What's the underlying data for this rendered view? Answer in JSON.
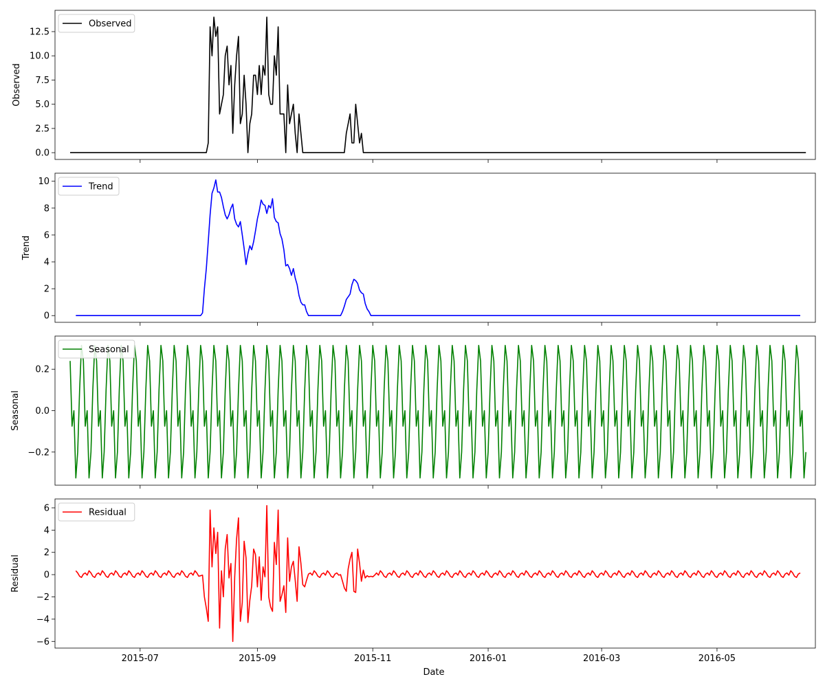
{
  "chart_data": {
    "type": "line",
    "xlabel": "Date",
    "x_range": [
      "2015-05-17",
      "2016-06-22"
    ],
    "x_ticks": [
      "2015-07",
      "2015-09",
      "2015-11",
      "2016-01",
      "2016-03",
      "2016-05"
    ],
    "x_tick_dates": [
      "2015-07-01",
      "2015-09-01",
      "2015-11-01",
      "2016-01-01",
      "2016-03-01",
      "2016-05-01"
    ],
    "legend_position": "upper-left",
    "grid": false,
    "panels": [
      {
        "id": "observed",
        "ylabel": "Observed",
        "legend": "Observed",
        "color": "#000000",
        "ylim": [
          -0.7,
          14.7
        ],
        "y_ticks": [
          0.0,
          2.5,
          5.0,
          7.5,
          10.0,
          12.5
        ],
        "y_tick_labels": [
          "0.0",
          "2.5",
          "5.0",
          "7.5",
          "10.0",
          "12.5"
        ],
        "points": [
          [
            "2015-05-25",
            0
          ],
          [
            "2015-08-05",
            0
          ],
          [
            "2015-08-06",
            1
          ],
          [
            "2015-08-07",
            13
          ],
          [
            "2015-08-08",
            10
          ],
          [
            "2015-08-09",
            14
          ],
          [
            "2015-08-10",
            12
          ],
          [
            "2015-08-11",
            13
          ],
          [
            "2015-08-12",
            4
          ],
          [
            "2015-08-14",
            6
          ],
          [
            "2015-08-15",
            10
          ],
          [
            "2015-08-16",
            11
          ],
          [
            "2015-08-17",
            7
          ],
          [
            "2015-08-18",
            9
          ],
          [
            "2015-08-19",
            2
          ],
          [
            "2015-08-20",
            7
          ],
          [
            "2015-08-21",
            10
          ],
          [
            "2015-08-22",
            12
          ],
          [
            "2015-08-23",
            3
          ],
          [
            "2015-08-24",
            4
          ],
          [
            "2015-08-25",
            8
          ],
          [
            "2015-08-26",
            5
          ],
          [
            "2015-08-27",
            0
          ],
          [
            "2015-08-28",
            3
          ],
          [
            "2015-08-29",
            4
          ],
          [
            "2015-08-30",
            8
          ],
          [
            "2015-08-31",
            8
          ],
          [
            "2015-09-01",
            6
          ],
          [
            "2015-09-02",
            9
          ],
          [
            "2015-09-03",
            6
          ],
          [
            "2015-09-04",
            9
          ],
          [
            "2015-09-05",
            8
          ],
          [
            "2015-09-06",
            14
          ],
          [
            "2015-09-07",
            6
          ],
          [
            "2015-09-08",
            5
          ],
          [
            "2015-09-09",
            5
          ],
          [
            "2015-09-10",
            10
          ],
          [
            "2015-09-11",
            8
          ],
          [
            "2015-09-12",
            13
          ],
          [
            "2015-09-13",
            4
          ],
          [
            "2015-09-15",
            4
          ],
          [
            "2015-09-16",
            0
          ],
          [
            "2015-09-17",
            7
          ],
          [
            "2015-09-18",
            3
          ],
          [
            "2015-09-19",
            4
          ],
          [
            "2015-09-20",
            5
          ],
          [
            "2015-09-21",
            2
          ],
          [
            "2015-09-22",
            0
          ],
          [
            "2015-09-23",
            4
          ],
          [
            "2015-09-24",
            2
          ],
          [
            "2015-09-25",
            0
          ],
          [
            "2015-10-17",
            0
          ],
          [
            "2015-10-18",
            2
          ],
          [
            "2015-10-20",
            4
          ],
          [
            "2015-10-21",
            1
          ],
          [
            "2015-10-22",
            1
          ],
          [
            "2015-10-23",
            5
          ],
          [
            "2015-10-24",
            3
          ],
          [
            "2015-10-25",
            1
          ],
          [
            "2015-10-26",
            2
          ],
          [
            "2015-10-27",
            0
          ],
          [
            "2016-06-17",
            0
          ]
        ]
      },
      {
        "id": "trend",
        "ylabel": "Trend",
        "legend": "Trend",
        "color": "#0000ff",
        "ylim": [
          -0.5,
          10.6
        ],
        "y_ticks": [
          0,
          2,
          4,
          6,
          8,
          10
        ],
        "y_tick_labels": [
          "0",
          "2",
          "4",
          "6",
          "8",
          "10"
        ],
        "points": [
          [
            "2015-05-28",
            0
          ],
          [
            "2015-08-02",
            0
          ],
          [
            "2015-08-03",
            0.2
          ],
          [
            "2015-08-04",
            2.0
          ],
          [
            "2015-08-05",
            3.5
          ],
          [
            "2015-08-06",
            5.5
          ],
          [
            "2015-08-07",
            7.5
          ],
          [
            "2015-08-08",
            9.1
          ],
          [
            "2015-08-09",
            9.5
          ],
          [
            "2015-08-10",
            10.1
          ],
          [
            "2015-08-11",
            9.2
          ],
          [
            "2015-08-12",
            9.2
          ],
          [
            "2015-08-13",
            8.8
          ],
          [
            "2015-08-14",
            8.1
          ],
          [
            "2015-08-15",
            7.5
          ],
          [
            "2015-08-16",
            7.2
          ],
          [
            "2015-08-17",
            7.5
          ],
          [
            "2015-08-18",
            8.0
          ],
          [
            "2015-08-19",
            8.3
          ],
          [
            "2015-08-20",
            7.2
          ],
          [
            "2015-08-21",
            6.8
          ],
          [
            "2015-08-22",
            6.6
          ],
          [
            "2015-08-23",
            7.0
          ],
          [
            "2015-08-24",
            6.0
          ],
          [
            "2015-08-25",
            5.0
          ],
          [
            "2015-08-26",
            3.8
          ],
          [
            "2015-08-27",
            4.6
          ],
          [
            "2015-08-28",
            5.2
          ],
          [
            "2015-08-29",
            4.9
          ],
          [
            "2015-08-30",
            5.5
          ],
          [
            "2015-08-31",
            6.3
          ],
          [
            "2015-09-01",
            7.2
          ],
          [
            "2015-09-02",
            7.8
          ],
          [
            "2015-09-03",
            8.6
          ],
          [
            "2015-09-04",
            8.3
          ],
          [
            "2015-09-05",
            8.2
          ],
          [
            "2015-09-06",
            7.6
          ],
          [
            "2015-09-07",
            8.2
          ],
          [
            "2015-09-08",
            8.0
          ],
          [
            "2015-09-09",
            8.7
          ],
          [
            "2015-09-10",
            7.3
          ],
          [
            "2015-09-11",
            7.0
          ],
          [
            "2015-09-12",
            6.9
          ],
          [
            "2015-09-13",
            6.1
          ],
          [
            "2015-09-14",
            5.7
          ],
          [
            "2015-09-15",
            4.9
          ],
          [
            "2015-09-16",
            3.7
          ],
          [
            "2015-09-17",
            3.8
          ],
          [
            "2015-09-18",
            3.5
          ],
          [
            "2015-09-19",
            3.0
          ],
          [
            "2015-09-20",
            3.5
          ],
          [
            "2015-09-21",
            2.8
          ],
          [
            "2015-09-22",
            2.3
          ],
          [
            "2015-09-23",
            1.5
          ],
          [
            "2015-09-24",
            1.0
          ],
          [
            "2015-09-25",
            0.8
          ],
          [
            "2015-09-26",
            0.8
          ],
          [
            "2015-09-27",
            0.3
          ],
          [
            "2015-09-28",
            0
          ],
          [
            "2015-10-15",
            0
          ],
          [
            "2015-10-16",
            0.3
          ],
          [
            "2015-10-17",
            0.7
          ],
          [
            "2015-10-18",
            1.2
          ],
          [
            "2015-10-19",
            1.4
          ],
          [
            "2015-10-20",
            1.6
          ],
          [
            "2015-10-21",
            2.3
          ],
          [
            "2015-10-22",
            2.7
          ],
          [
            "2015-10-23",
            2.6
          ],
          [
            "2015-10-24",
            2.4
          ],
          [
            "2015-10-25",
            1.9
          ],
          [
            "2015-10-26",
            1.7
          ],
          [
            "2015-10-27",
            1.6
          ],
          [
            "2015-10-28",
            0.9
          ],
          [
            "2015-10-29",
            0.5
          ],
          [
            "2015-10-30",
            0.3
          ],
          [
            "2015-10-31",
            0
          ],
          [
            "2016-06-14",
            0
          ]
        ]
      },
      {
        "id": "seasonal",
        "ylabel": "Seasonal",
        "legend": "Seasonal",
        "color": "#008000",
        "ylim": [
          -0.36,
          0.36
        ],
        "y_ticks": [
          -0.2,
          0.0,
          0.2
        ],
        "y_tick_labels": [
          "−0.2",
          "0.0",
          "0.2"
        ],
        "start_date": "2015-05-25",
        "end_date": "2016-06-17",
        "period_values": [
          0.24,
          -0.075,
          0.0,
          -0.325,
          -0.2,
          0.1,
          0.315
        ]
      },
      {
        "id": "residual",
        "ylabel": "Residual",
        "legend": "Residual",
        "color": "#ff0000",
        "ylim": [
          -6.6,
          6.8
        ],
        "y_ticks": [
          -6,
          -4,
          -2,
          0,
          2,
          4,
          6
        ],
        "y_tick_labels": [
          "−6",
          "−4",
          "−2",
          "0",
          "2",
          "4",
          "6"
        ],
        "start_date": "2015-05-28",
        "end_date": "2016-06-14",
        "period_values": [
          0.35,
          0.15,
          -0.15,
          -0.25,
          0.05,
          0.15,
          -0.05
        ],
        "overrides": [
          [
            "2015-08-02",
            -0.1
          ],
          [
            "2015-08-03",
            -0.05
          ],
          [
            "2015-08-04",
            -2.0
          ],
          [
            "2015-08-05",
            -3.0
          ],
          [
            "2015-08-06",
            -4.2
          ],
          [
            "2015-08-07",
            5.8
          ],
          [
            "2015-08-08",
            0.7
          ],
          [
            "2015-08-09",
            4.2
          ],
          [
            "2015-08-10",
            1.9
          ],
          [
            "2015-08-11",
            3.8
          ],
          [
            "2015-08-12",
            -4.8
          ],
          [
            "2015-08-14",
            -2.0
          ],
          [
            "2015-08-15",
            2.3
          ],
          [
            "2015-08-16",
            3.6
          ],
          [
            "2015-08-17",
            -0.3
          ],
          [
            "2015-08-18",
            1.0
          ],
          [
            "2015-08-19",
            -6.0
          ],
          [
            "2015-08-20",
            -0.2
          ],
          [
            "2015-08-21",
            3.2
          ],
          [
            "2015-08-22",
            5.1
          ],
          [
            "2015-08-23",
            -4.2
          ],
          [
            "2015-08-24",
            -2.5
          ],
          [
            "2015-08-25",
            3.0
          ],
          [
            "2015-08-26",
            1.5
          ],
          [
            "2015-08-27",
            -4.3
          ],
          [
            "2015-08-28",
            -2.3
          ],
          [
            "2015-08-29",
            -1.0
          ],
          [
            "2015-08-30",
            2.3
          ],
          [
            "2015-08-31",
            1.8
          ],
          [
            "2015-09-01",
            -1.1
          ],
          [
            "2015-09-02",
            1.6
          ],
          [
            "2015-09-03",
            -2.3
          ],
          [
            "2015-09-04",
            0.7
          ],
          [
            "2015-09-05",
            -0.2
          ],
          [
            "2015-09-06",
            6.2
          ],
          [
            "2015-09-07",
            -2.0
          ],
          [
            "2015-09-08",
            -2.9
          ],
          [
            "2015-09-09",
            -3.3
          ],
          [
            "2015-09-10",
            2.9
          ],
          [
            "2015-09-11",
            0.9
          ],
          [
            "2015-09-12",
            5.8
          ],
          [
            "2015-09-13",
            -2.4
          ],
          [
            "2015-09-14",
            -1.8
          ],
          [
            "2015-09-15",
            -1.0
          ],
          [
            "2015-09-16",
            -3.4
          ],
          [
            "2015-09-17",
            3.3
          ],
          [
            "2015-09-18",
            -0.6
          ],
          [
            "2015-09-19",
            0.7
          ],
          [
            "2015-09-20",
            1.2
          ],
          [
            "2015-09-21",
            -0.5
          ],
          [
            "2015-09-22",
            -2.4
          ],
          [
            "2015-09-23",
            2.5
          ],
          [
            "2015-09-24",
            1.0
          ],
          [
            "2015-09-25",
            -0.9
          ],
          [
            "2015-09-26",
            -1.1
          ],
          [
            "2015-09-27",
            -0.5
          ],
          [
            "2015-10-15",
            0.0
          ],
          [
            "2015-10-16",
            -0.6
          ],
          [
            "2015-10-17",
            -1.2
          ],
          [
            "2015-10-18",
            -1.5
          ],
          [
            "2015-10-19",
            0.5
          ],
          [
            "2015-10-20",
            1.4
          ],
          [
            "2015-10-21",
            2.0
          ],
          [
            "2015-10-22",
            -1.5
          ],
          [
            "2015-10-23",
            -1.6
          ],
          [
            "2015-10-24",
            2.3
          ],
          [
            "2015-10-25",
            1.0
          ],
          [
            "2015-10-26",
            -0.6
          ],
          [
            "2015-10-27",
            0.4
          ],
          [
            "2015-10-28",
            -0.3
          ],
          [
            "2015-10-29",
            -0.1
          ],
          [
            "2015-10-30",
            -0.2
          ],
          [
            "2015-10-31",
            -0.15
          ],
          [
            "2015-11-01",
            -0.2
          ],
          [
            "2015-11-02",
            -0.05
          ]
        ]
      }
    ]
  }
}
